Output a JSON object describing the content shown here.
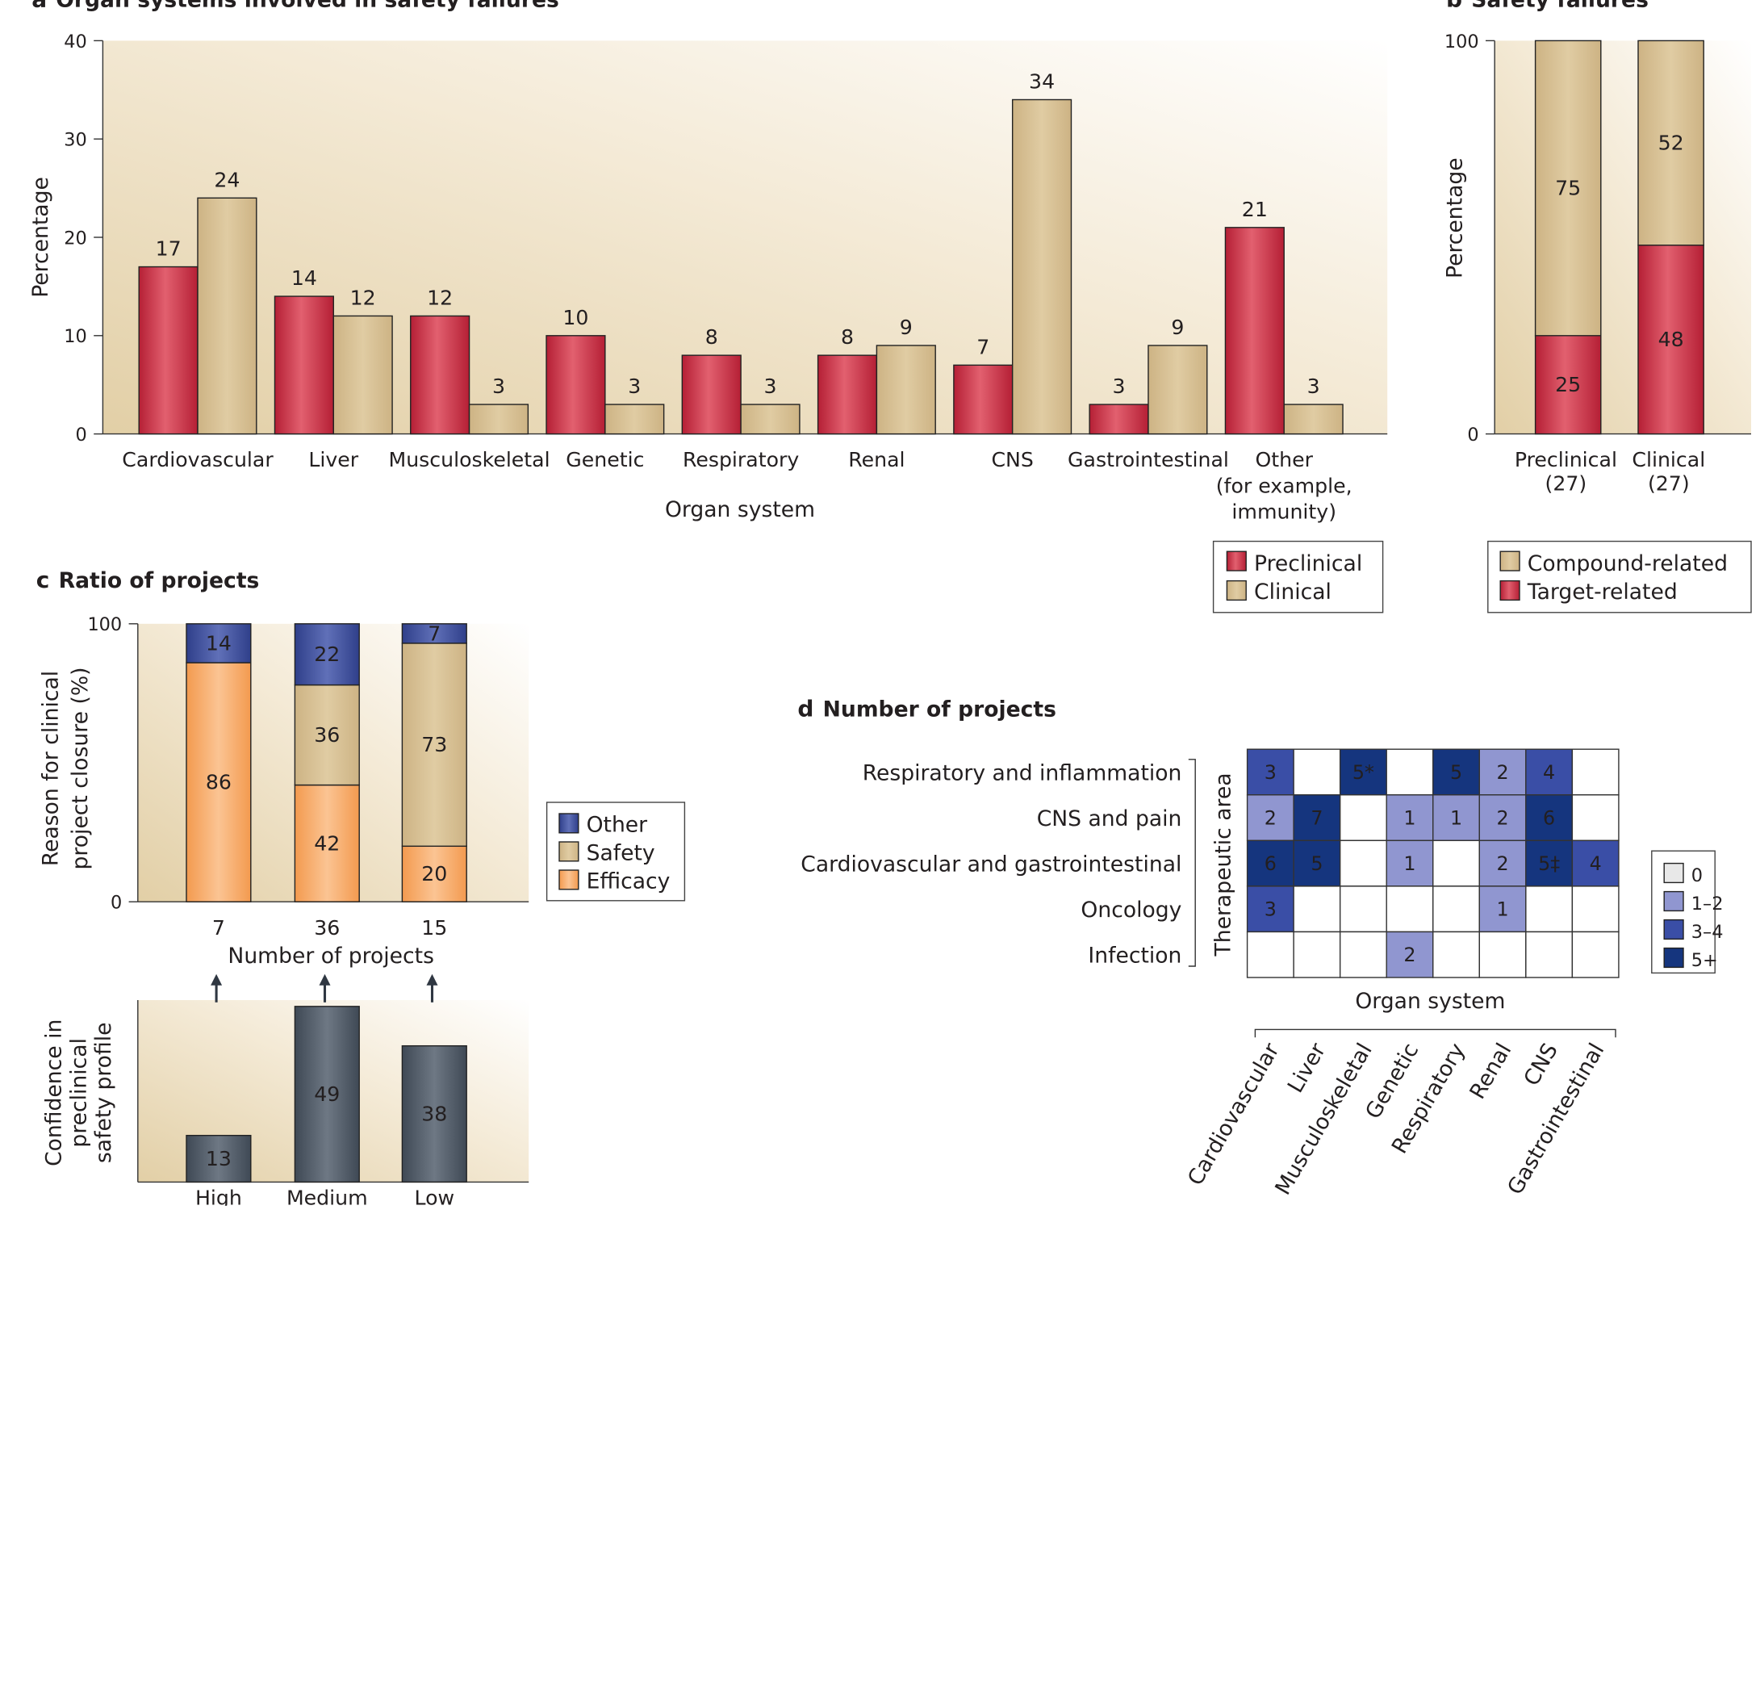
{
  "panel_a": {
    "letter": "a",
    "title": "Organ systems involved in safety failures",
    "legend": [
      "Preclinical",
      "Clinical"
    ]
  },
  "panel_b": {
    "letter": "b",
    "title": "Safety failures",
    "legend": [
      "Compound-related",
      "Target-related"
    ]
  },
  "panel_c": {
    "letter": "c",
    "title": "Ratio of projects",
    "legend": [
      "Other",
      "Safety",
      "Efficacy"
    ]
  },
  "panel_d": {
    "letter": "d",
    "title": "Number of projects",
    "legend": [
      "0",
      "1–2",
      "3–4",
      "5+"
    ]
  },
  "colors": {
    "preclinical_red": "#c8283d",
    "clinical_tan": "#d4bc8a",
    "efficacy_orange": "#f4a35a",
    "other_blue": "#3c4e9a",
    "confidence_gray": "#4f5a66",
    "heat_0": "#e8e8e8",
    "heat_1_2": "#9096d0",
    "heat_3_4": "#3a4ea6",
    "heat_5_plus": "#15357e"
  },
  "chart_data": [
    {
      "type": "bar",
      "panel": "a",
      "title": "Organ systems involved in safety failures",
      "xlabel": "Organ system",
      "ylabel": "Percentage",
      "ylim": [
        0,
        40
      ],
      "yticks": [
        "0",
        "10",
        "20",
        "30",
        "40"
      ],
      "categories": [
        "Cardiovascular",
        "Liver",
        "Musculoskeletal",
        "Genetic",
        "Respiratory",
        "Renal",
        "CNS",
        "Gastrointestinal",
        "Other\n(for example,\nimmunity)"
      ],
      "series": [
        {
          "name": "Preclinical",
          "values": [
            17,
            14,
            12,
            10,
            8,
            8,
            7,
            3,
            21
          ]
        },
        {
          "name": "Clinical",
          "values": [
            24,
            12,
            3,
            3,
            3,
            9,
            34,
            9,
            3
          ]
        }
      ],
      "legend": "bottom-right"
    },
    {
      "type": "bar",
      "stacked": true,
      "panel": "b",
      "title": "Safety failures",
      "ylabel": "Percentage",
      "ylim": [
        0,
        100
      ],
      "yticks": [
        "0",
        "100"
      ],
      "categories": [
        "Preclinical\n(27)",
        "Clinical\n(27)"
      ],
      "series": [
        {
          "name": "Target-related",
          "values": [
            25,
            48
          ]
        },
        {
          "name": "Compound-related",
          "values": [
            75,
            52
          ]
        }
      ],
      "legend": "bottom"
    },
    {
      "type": "bar",
      "stacked": true,
      "panel": "c",
      "title": "Ratio of projects",
      "xlabel": "Number of projects",
      "ylabel": "Reason for clinical\nproject closure (%)",
      "ylim": [
        0,
        100
      ],
      "yticks": [
        "0",
        "100"
      ],
      "categories": [
        "7",
        "36",
        "15"
      ],
      "series": [
        {
          "name": "Efficacy",
          "values": [
            86,
            42,
            20
          ]
        },
        {
          "name": "Safety",
          "values": [
            0,
            36,
            73
          ]
        },
        {
          "name": "Other",
          "values": [
            14,
            22,
            7
          ]
        }
      ],
      "legend": "right"
    },
    {
      "type": "bar",
      "panel": "c-lower",
      "ylabel": "Confidence in\npreclinical\nsafety profile",
      "categories": [
        "High",
        "Medium",
        "Low"
      ],
      "values": [
        13,
        49,
        38
      ],
      "ylim": [
        0,
        50
      ]
    },
    {
      "type": "heatmap",
      "panel": "d",
      "title": "Number of projects",
      "xlabel": "Organ system",
      "ylabel": "Therapeutic area",
      "rows": [
        "Respiratory and inflammation",
        "CNS and pain",
        "Cardiovascular and gastrointestinal",
        "Oncology",
        "Infection"
      ],
      "columns": [
        "Cardiovascular",
        "Liver",
        "Musculoskeletal",
        "Genetic",
        "Respiratory",
        "Renal",
        "CNS",
        "Gastrointestinal"
      ],
      "cells": [
        [
          "3",
          "",
          "5*",
          "",
          "5",
          "2",
          "4",
          ""
        ],
        [
          "2",
          "7",
          "",
          "1",
          "1",
          "2",
          "6",
          ""
        ],
        [
          "6",
          "5",
          "",
          "1",
          "",
          "2",
          "5‡",
          "4"
        ],
        [
          "3",
          "",
          "",
          "",
          "",
          "1",
          "",
          ""
        ],
        [
          "",
          "",
          "",
          "2",
          "",
          "",
          "",
          ""
        ]
      ],
      "legend": "right"
    }
  ]
}
